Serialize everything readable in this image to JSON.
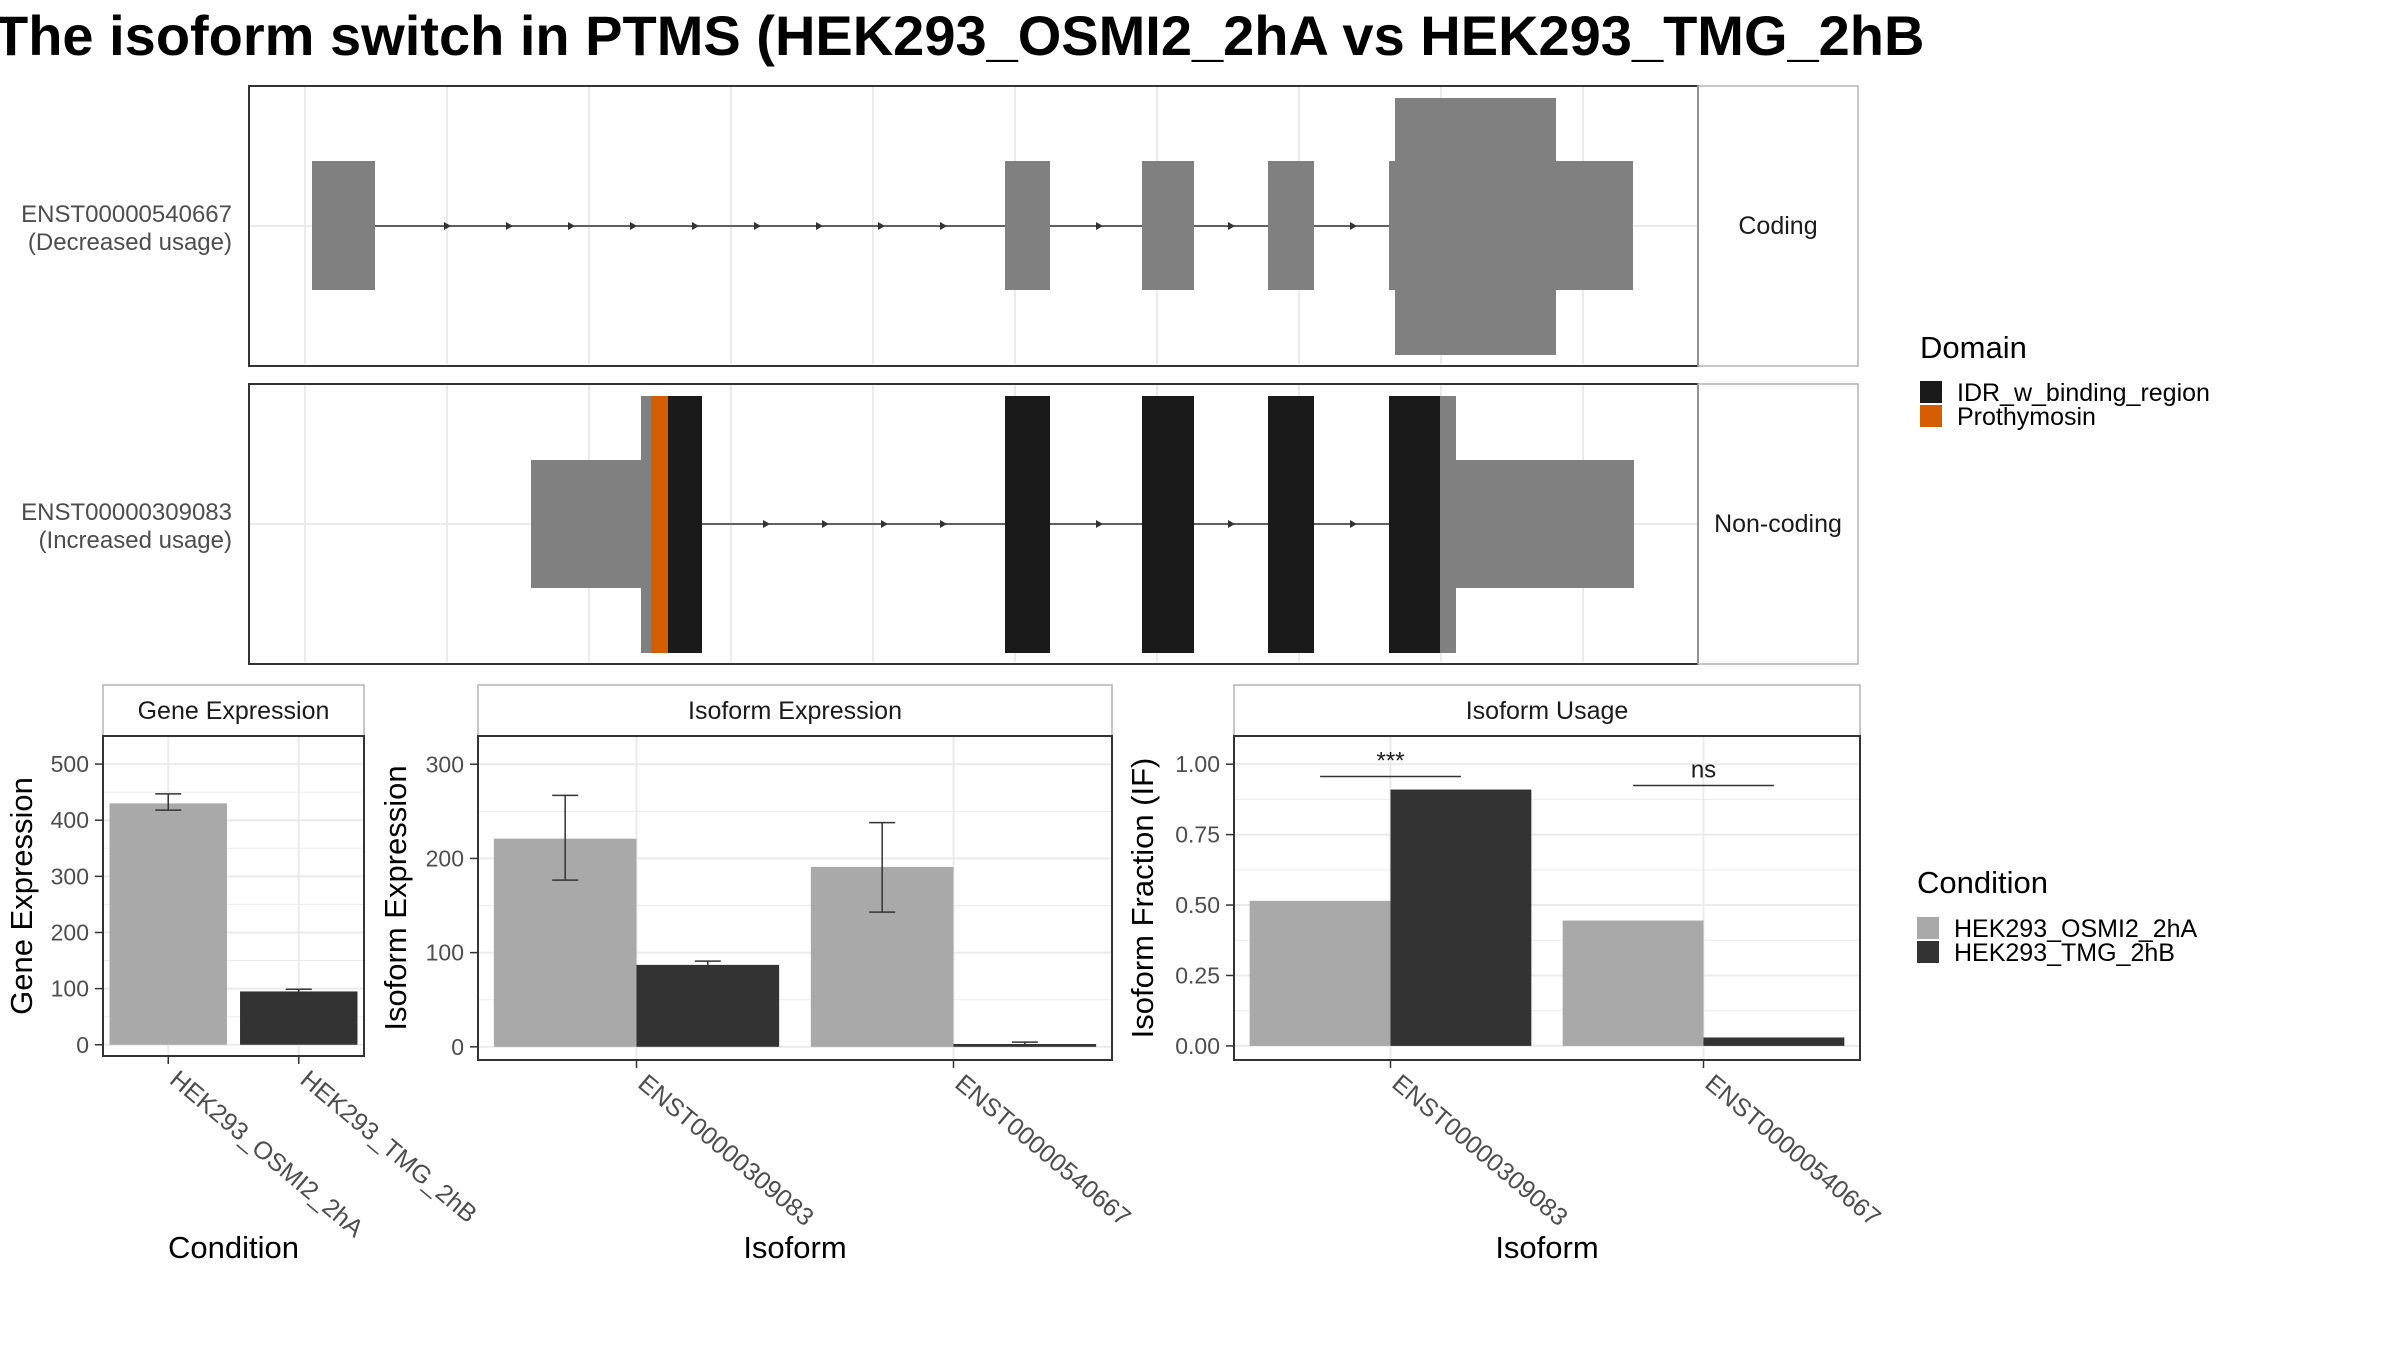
{
  "title": "The isoform switch in PTMS (HEK293_OSMI2_2hA vs HEK293_TMG_2hB",
  "colors": {
    "condition_a": "#a9a9a9",
    "condition_b": "#333333",
    "exon_grey": "#808080",
    "idr": "#1a1a1a",
    "prothymosin": "#d55e00",
    "grid": "#ebebeb",
    "panel_border": "#333333",
    "strip_border": "#b3b3b3"
  },
  "transcripts": [
    {
      "id": "ENST00000540667",
      "usage": "(Decreased usage)",
      "strip": "Coding"
    },
    {
      "id": "ENST00000309083",
      "usage": "(Increased usage)",
      "strip": "Non-coding"
    }
  ],
  "domain_legend": {
    "title": "Domain",
    "items": [
      {
        "label": "IDR_w_binding_region",
        "color": "#1a1a1a"
      },
      {
        "label": "Prothymosin",
        "color": "#d55e00"
      }
    ]
  },
  "condition_legend": {
    "title": "Condition",
    "items": [
      {
        "label": "HEK293_OSMI2_2hA",
        "color": "#a9a9a9"
      },
      {
        "label": "HEK293_TMG_2hB",
        "color": "#333333"
      }
    ]
  },
  "chart_data": [
    {
      "type": "bar",
      "title": "Gene Expression",
      "xlabel": "Condition",
      "ylabel": "Gene Expression",
      "categories": [
        "HEK293_OSMI2_2hA",
        "HEK293_TMG_2hB"
      ],
      "values": [
        430,
        95
      ],
      "error_low": [
        418,
        92
      ],
      "error_high": [
        447,
        99
      ],
      "ylim": [
        -20,
        550
      ],
      "yticks": [
        0,
        100,
        200,
        300,
        400,
        500
      ],
      "ytick_labels": [
        "0",
        "100",
        "200",
        "300",
        "400",
        "500"
      ],
      "grid": true
    },
    {
      "type": "bar",
      "title": "Isoform Expression",
      "xlabel": "Isoform",
      "ylabel": "Isoform Expression",
      "categories": [
        "ENST00000309083",
        "ENST00000540667"
      ],
      "series": [
        {
          "name": "HEK293_OSMI2_2hA",
          "values": [
            221,
            191
          ],
          "error_low": [
            177,
            143
          ],
          "error_high": [
            267,
            238
          ]
        },
        {
          "name": "HEK293_TMG_2hB",
          "values": [
            87,
            3
          ],
          "error_low": [
            84,
            1
          ],
          "error_high": [
            91,
            5
          ]
        }
      ],
      "ylim": [
        -14,
        330
      ],
      "yticks": [
        0,
        100,
        200,
        300
      ],
      "ytick_labels": [
        "0",
        "100",
        "200",
        "300"
      ],
      "grid": true
    },
    {
      "type": "bar",
      "title": "Isoform Usage",
      "xlabel": "Isoform",
      "ylabel": "Isoform Fraction (IF)",
      "categories": [
        "ENST00000309083",
        "ENST00000540667"
      ],
      "series": [
        {
          "name": "HEK293_OSMI2_2hA",
          "values": [
            0.515,
            0.445
          ]
        },
        {
          "name": "HEK293_TMG_2hB",
          "values": [
            0.91,
            0.03
          ]
        }
      ],
      "significance": [
        "***",
        "ns"
      ],
      "ylim": [
        -0.05,
        1.1
      ],
      "yticks": [
        0,
        0.25,
        0.5,
        0.75,
        1.0
      ],
      "ytick_labels": [
        "0.00",
        "0.25",
        "0.50",
        "0.75",
        "1.00"
      ],
      "grid": true
    }
  ]
}
